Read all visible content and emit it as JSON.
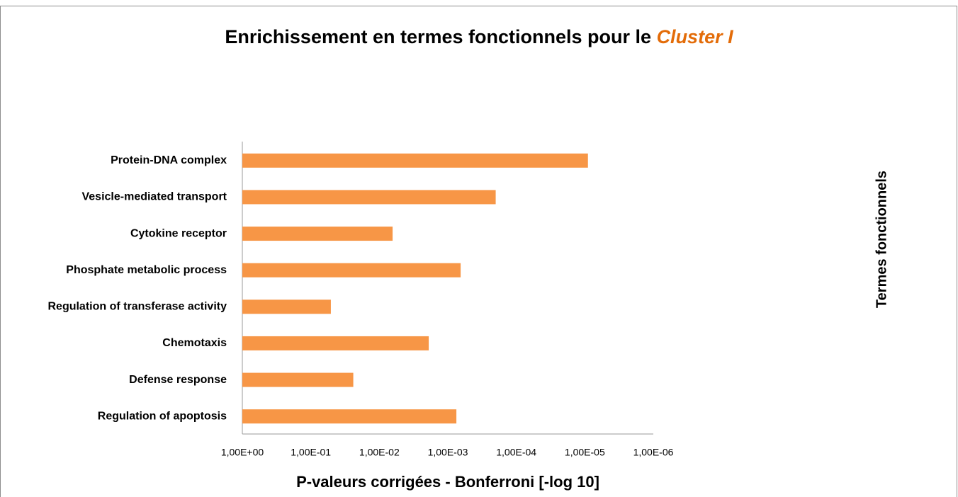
{
  "chart_data": {
    "type": "bar",
    "orientation": "horizontal",
    "title": "Enrichissement en termes fonctionnels pour le",
    "title_emphasis": "Cluster I",
    "x_label": "P-valeurs corrigées - Bonferroni [-log 10]",
    "y_label": "Termes fonctionnels",
    "categories": [
      "Protein-DNA complex",
      "Vesicle-mediated transport",
      "Cytokine receptor",
      "Phosphate metabolic process",
      "Regulation of transferase activity",
      "Chemotaxis",
      "Defense response",
      "Regulation of apoptosis"
    ],
    "values": [
      9e-06,
      0.0002,
      0.0064,
      0.00065,
      0.051,
      0.0019,
      0.024,
      0.00075
    ],
    "color": "#f79646",
    "x_log": true,
    "xlim": [
      1,
      1e-06
    ],
    "xticks": [
      {
        "value": 1,
        "label": "1,00E+00"
      },
      {
        "value": 0.1,
        "label": "1,00E-01"
      },
      {
        "value": 0.01,
        "label": "1,00E-02"
      },
      {
        "value": 0.001,
        "label": "1,00E-03"
      },
      {
        "value": 0.0001,
        "label": "1,00E-04"
      },
      {
        "value": 1e-05,
        "label": "1,00E-05"
      },
      {
        "value": 1e-06,
        "label": "1,00E-06"
      }
    ],
    "grid": false
  }
}
